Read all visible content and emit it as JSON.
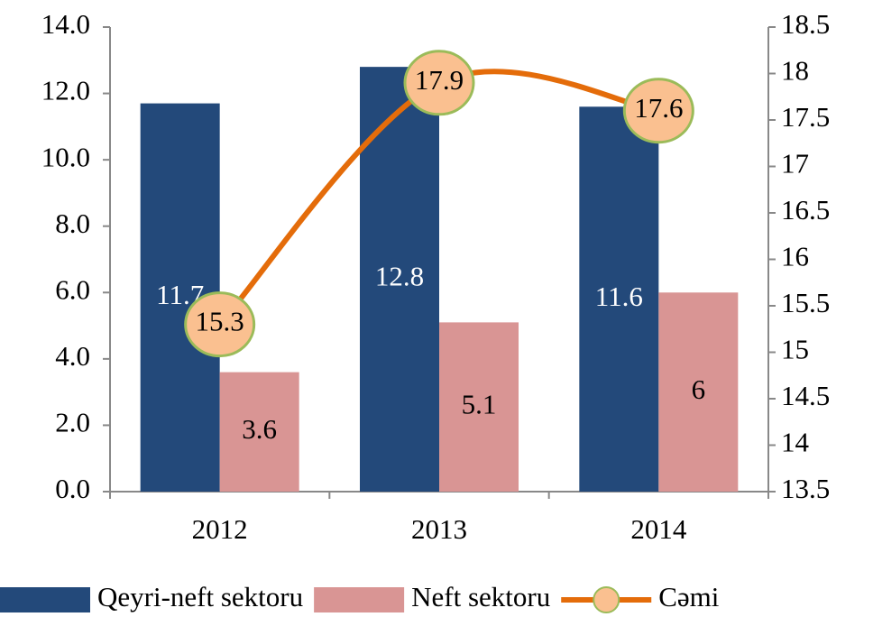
{
  "chart_data": {
    "type": "bar",
    "categories": [
      "2012",
      "2013",
      "2014"
    ],
    "series": [
      {
        "name": "Qeyri-neft sektoru",
        "color": "#23497a",
        "values": [
          11.7,
          12.8,
          11.6
        ]
      },
      {
        "name": "Neft sektoru",
        "color": "#d99594",
        "values": [
          3.6,
          5.1,
          6
        ]
      },
      {
        "name": "Cəmi",
        "color": "#e46c0a",
        "type": "line",
        "axis": "y2",
        "marker_color": "#fac090",
        "marker_edge": "#9bbb59",
        "values": [
          15.3,
          17.9,
          17.6
        ]
      }
    ],
    "ylim": [
      0,
      14
    ],
    "yticks": [
      {
        "value": 0,
        "label": "0.0"
      },
      {
        "value": 2,
        "label": "2.0"
      },
      {
        "value": 4,
        "label": "4.0"
      },
      {
        "value": 6,
        "label": "6.0"
      },
      {
        "value": 8,
        "label": "8.0"
      },
      {
        "value": 10,
        "label": "10.0"
      },
      {
        "value": 12,
        "label": "12.0"
      },
      {
        "value": 14,
        "label": "14.0"
      }
    ],
    "y2lim": [
      13.5,
      18.5
    ],
    "y2ticks": [
      13.5,
      14,
      14.5,
      15,
      15.5,
      16,
      16.5,
      17,
      17.5,
      18,
      18.5
    ],
    "legend": "bottom"
  }
}
